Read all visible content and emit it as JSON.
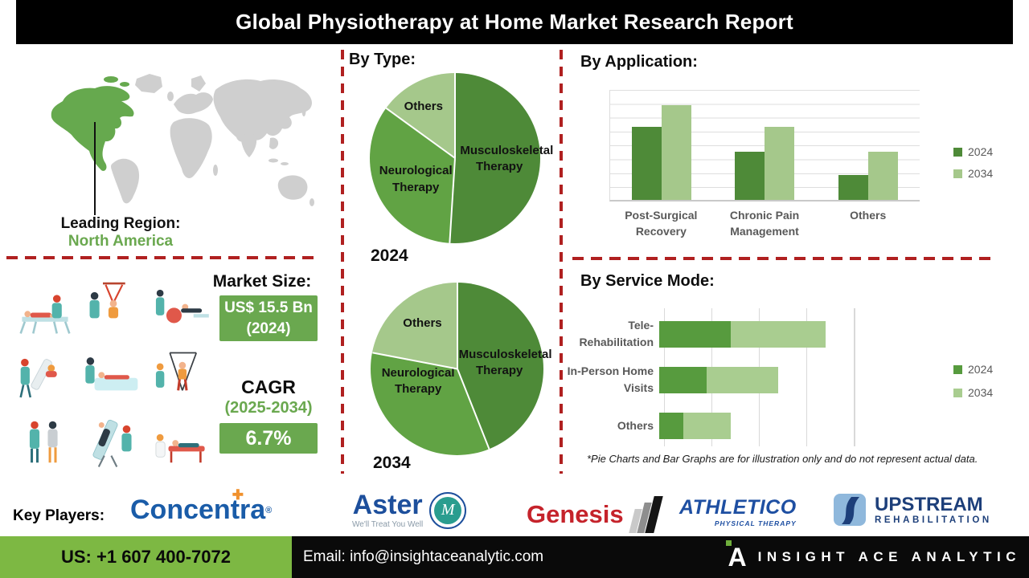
{
  "title": "Global Physiotherapy at Home Market Research Report",
  "map": {
    "leading_region_label": "Leading Region:",
    "leading_region_value": "North America"
  },
  "by_type": {
    "heading": "By Type:",
    "year_1": "2024",
    "year_2": "2034"
  },
  "by_application": {
    "heading": "By Application:"
  },
  "by_service_mode": {
    "heading": "By Service Mode:"
  },
  "footnote": "*Pie Charts and Bar Graphs are for illustration only and do not represent actual data.",
  "market_size": {
    "label": "Market Size:",
    "value": "US$ 15.5 Bn",
    "year": "(2024)"
  },
  "cagr": {
    "label": "CAGR",
    "period": "(2025-2034)",
    "value": "6.7%"
  },
  "key_players": {
    "label": "Key Players:",
    "concentra": {
      "prefix": "Concen",
      "mid": "t",
      "suffix": "ra",
      "reg": "®"
    },
    "aster": {
      "name": "Aster",
      "tagline": "We'll Treat You Well",
      "monogram": "M"
    },
    "genesis": {
      "name": "Genesis"
    },
    "athletico": {
      "name": "ATHLETICO",
      "sub": "PHYSICAL THERAPY"
    },
    "upstream": {
      "line1": "UPSTREAM",
      "line2": "REHABILITATION"
    }
  },
  "footer": {
    "phone": "US: +1 607 400-7072",
    "email": "Email: info@insightaceanalytic.com",
    "brand": "INSIGHT ACE ANALYTIC"
  },
  "colors": {
    "accent_green": "#6aa84f",
    "footer_green": "#7db843",
    "dashed_red": "#b02020",
    "map_green": "#66a94e",
    "map_gray": "#cfcfcf",
    "pie_dark_green": "#4e8a38",
    "pie_mid_green": "#61a344",
    "pie_light_green": "#a5c88b"
  },
  "chart_data": [
    {
      "type": "pie",
      "title": "By Type – 2024",
      "labels": [
        "Musculoskeletal Therapy",
        "Neurological Therapy",
        "Others"
      ],
      "values": [
        51,
        34,
        15
      ],
      "colors": [
        "#4e8a38",
        "#61a344",
        "#a5c88b"
      ],
      "year": "2024"
    },
    {
      "type": "pie",
      "title": "By Type – 2034",
      "labels": [
        "Musculoskeletal Therapy",
        "Neurological Therapy",
        "Others"
      ],
      "values": [
        44,
        34,
        22
      ],
      "colors": [
        "#4e8a38",
        "#61a344",
        "#a5c88b"
      ],
      "year": "2034"
    },
    {
      "type": "bar",
      "title": "By Application",
      "categories": [
        "Post-Surgical Recovery",
        "Chronic Pain Management",
        "Others"
      ],
      "series": [
        {
          "name": "2024",
          "color": "#4e8a38",
          "values": [
            5.3,
            3.5,
            1.8
          ]
        },
        {
          "name": "2034",
          "color": "#a5c88b",
          "values": [
            6.9,
            5.3,
            3.5
          ]
        }
      ],
      "ylim": [
        0,
        8
      ],
      "grid": true,
      "legend_position": "right"
    },
    {
      "type": "bar",
      "orientation": "horizontal",
      "stacked": true,
      "title": "By Service Mode",
      "categories": [
        "Tele-Rehabilitation",
        "In-Person Home Visits",
        "Others"
      ],
      "series": [
        {
          "name": "2024",
          "color": "#579b3e",
          "values": [
            1.5,
            1.0,
            0.5
          ]
        },
        {
          "name": "2034",
          "color": "#a9cd90",
          "values": [
            2.0,
            1.5,
            1.0
          ]
        }
      ],
      "xlim": [
        0,
        4
      ],
      "grid": true,
      "legend_position": "right"
    }
  ]
}
